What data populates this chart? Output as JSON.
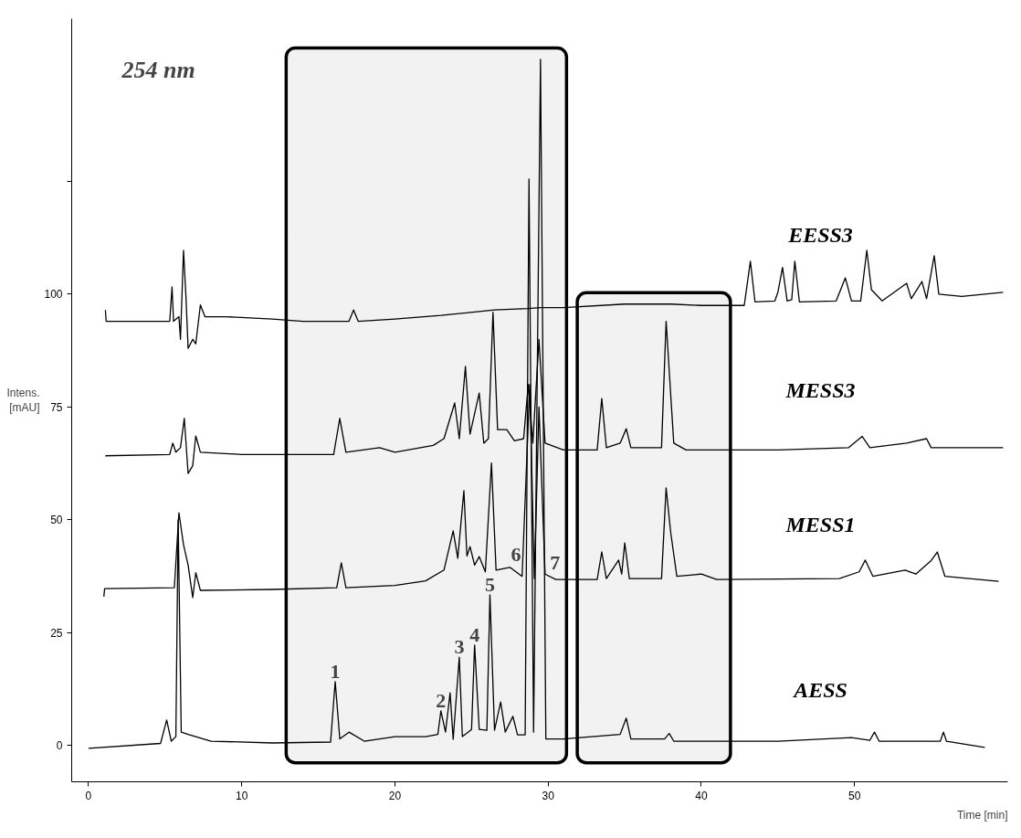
{
  "chart_data": {
    "type": "line",
    "xlabel": "Time [min]",
    "ylabel": "Intens. [mAU]",
    "xlim": [
      -1.1,
      60
    ],
    "ylim": [
      -8,
      161
    ],
    "xticks": [
      0,
      10,
      20,
      30,
      40,
      50
    ],
    "yticks": [
      0,
      25,
      50,
      75,
      100,
      {
        "value": 125,
        "label": null
      }
    ],
    "grid": false,
    "marker": "none",
    "line_style": "solid",
    "annotations": [
      "254 nm",
      {
        "text": "1",
        "x": 16.1,
        "y": 14.2
      },
      {
        "text": "2",
        "x": 23.0,
        "y": 7.7
      },
      {
        "text": "3",
        "x": 24.2,
        "y": 19.6
      },
      {
        "text": "4",
        "x": 25.2,
        "y": 22.3
      },
      {
        "text": "5",
        "x": 26.2,
        "y": 33.4
      },
      {
        "text": "6",
        "x": 28.58,
        "y": 42.3
      },
      {
        "text": "7",
        "x": 29.76,
        "y": 40.5
      }
    ],
    "bands": [
      {
        "axis": "x",
        "from": 12.9,
        "to": 31.2,
        "color": "#000000"
      },
      {
        "axis": "x",
        "from": 31.9,
        "to": 41.9,
        "color": "#000000"
      }
    ],
    "series": [
      {
        "name": "EESS3",
        "color": "#000000",
        "x": [
          1.1,
          1.15,
          5.3,
          5.45,
          5.55,
          5.9,
          6.0,
          6.2,
          6.35,
          6.5,
          6.8,
          7.0,
          7.3,
          7.6,
          9,
          12,
          14,
          17.0,
          17.3,
          17.6,
          20,
          23,
          26.5,
          28.7,
          29.5,
          31,
          35,
          38,
          40,
          42.8,
          43.2,
          43.5,
          44.8,
          45.0,
          45.3,
          45.6,
          45.9,
          46.1,
          46.4,
          48.8,
          49.4,
          49.8,
          50.4,
          50.8,
          51.1,
          51.8,
          53.4,
          53.7,
          54.4,
          54.7,
          55.2,
          55.5,
          57,
          59.7
        ],
        "values": [
          96.5,
          94,
          94,
          101.6,
          94,
          95,
          90,
          109.7,
          100,
          88,
          90,
          89,
          97.6,
          95,
          95,
          94.5,
          94,
          94,
          96.5,
          94,
          94.5,
          95.3,
          96.5,
          96.8,
          97,
          97,
          97.8,
          97.8,
          97.5,
          97.5,
          107.3,
          98.3,
          98.5,
          100.5,
          105.9,
          98.5,
          98.8,
          107.3,
          98.3,
          98.5,
          103.6,
          98.5,
          98.5,
          109.7,
          101,
          98.5,
          102.4,
          99,
          102.8,
          99,
          108.5,
          100,
          99.5,
          100.4
        ]
      },
      {
        "name": "MESS3",
        "color": "#000000",
        "x": [
          1.1,
          5.3,
          5.5,
          5.7,
          6.0,
          6.25,
          6.5,
          6.8,
          7.0,
          7.3,
          10,
          16,
          16.4,
          16.8,
          19,
          20,
          22.5,
          23.2,
          23.9,
          24.2,
          24.6,
          24.9,
          25.5,
          25.8,
          26.1,
          26.4,
          26.7,
          27.3,
          27.8,
          28.4,
          28.7,
          29.0,
          29.4,
          29.8,
          31,
          33.2,
          33.5,
          33.8,
          34.7,
          35.1,
          35.4,
          37.4,
          37.7,
          38.2,
          39,
          45,
          49.6,
          50.5,
          51,
          53.4,
          54.7,
          55,
          59.7
        ],
        "values": [
          64.2,
          64.5,
          67,
          65,
          66,
          72.5,
          60.3,
          62,
          68.6,
          65,
          64.5,
          64.5,
          72.5,
          65,
          66,
          65,
          66.5,
          68,
          75.9,
          68,
          84,
          69,
          78.1,
          67,
          68,
          96,
          70,
          70,
          67.5,
          68,
          80,
          67,
          90,
          67,
          65.5,
          65.5,
          76.9,
          66,
          67,
          70.2,
          66,
          66,
          94,
          67,
          65.5,
          65.5,
          66,
          68.5,
          66,
          67,
          68,
          66,
          66
        ]
      },
      {
        "name": "MESS1",
        "color": "#000000",
        "x": [
          1.0,
          1.05,
          5.6,
          5.9,
          6.2,
          6.5,
          6.8,
          7.0,
          7.3,
          12,
          16.2,
          16.5,
          16.8,
          20,
          22,
          23.2,
          23.8,
          24.1,
          24.5,
          24.7,
          24.9,
          25.2,
          25.5,
          25.9,
          26.3,
          26.6,
          27.5,
          28.3,
          28.8,
          29.1,
          29.4,
          29.8,
          30.5,
          33.2,
          33.5,
          33.8,
          34.6,
          34.8,
          35.0,
          35.3,
          37.4,
          37.7,
          38.0,
          38.4,
          40,
          41,
          49,
          50.3,
          50.7,
          51.2,
          53.3,
          54,
          55.0,
          55.4,
          55.9,
          59.4
        ],
        "values": [
          33,
          34.8,
          35,
          51.6,
          44.5,
          40,
          32.8,
          38.3,
          34.4,
          34.6,
          35,
          40.5,
          35,
          35.5,
          36.5,
          38.9,
          47.6,
          41.5,
          56.5,
          42,
          44.1,
          40,
          41.9,
          38.5,
          62.6,
          38.9,
          39.5,
          37.5,
          80,
          37,
          75,
          38,
          36.8,
          36.8,
          42.9,
          37,
          41.1,
          38,
          44.9,
          37,
          37,
          57.1,
          47.2,
          37.5,
          38,
          36.8,
          37,
          38.5,
          41.1,
          37.5,
          38.9,
          38,
          41,
          42.9,
          37.5,
          36.4
        ]
      },
      {
        "name": "AESS",
        "color": "#000000",
        "x": [
          0.0,
          4.7,
          5.1,
          5.4,
          5.7,
          5.85,
          6.05,
          6.5,
          7.5,
          8,
          12,
          15.8,
          16.1,
          16.4,
          17,
          18,
          20,
          22,
          22.8,
          23.0,
          23.3,
          23.6,
          23.8,
          24.2,
          24.4,
          25.0,
          25.2,
          25.5,
          26.0,
          26.2,
          26.5,
          26.9,
          27.2,
          27.7,
          28.0,
          28.5,
          28.75,
          29.05,
          29.5,
          29.85,
          31,
          34.7,
          35.1,
          35.4,
          37.6,
          37.9,
          38.2,
          45,
          49.8,
          51.0,
          51.3,
          51.6,
          55.6,
          55.8,
          56,
          58.5
        ],
        "values": [
          -0.6,
          0.5,
          5.7,
          1.0,
          2,
          50,
          3,
          2.5,
          1.5,
          1,
          0.6,
          0.8,
          14.2,
          1.5,
          3,
          1,
          2,
          2,
          2.5,
          7.7,
          3,
          11.7,
          1.4,
          19.6,
          2,
          3.6,
          22.3,
          3.6,
          3.4,
          33.4,
          3.4,
          9.7,
          3,
          6.5,
          2.4,
          2.4,
          125.5,
          3,
          152,
          1.5,
          1.5,
          2.5,
          6.1,
          1.5,
          1.5,
          2.7,
          1,
          1,
          1.8,
          1.2,
          3,
          1,
          1,
          3,
          1,
          -0.4
        ]
      }
    ]
  }
}
